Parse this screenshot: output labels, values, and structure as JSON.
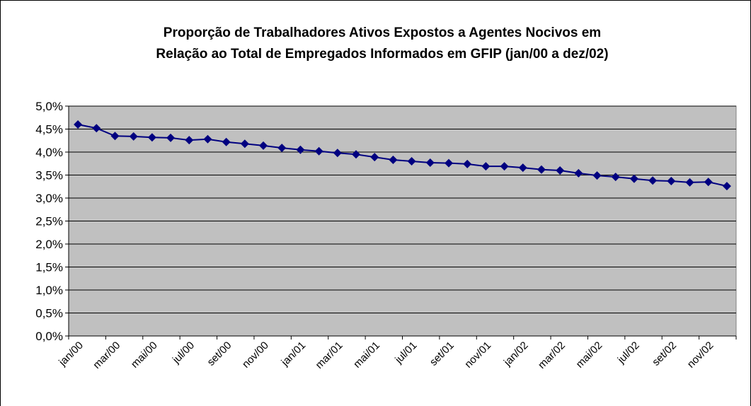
{
  "chart_data": {
    "type": "line",
    "title": [
      "Proporção de Trabalhadores Ativos Expostos a Agentes Nocivos em",
      "Relação ao Total de Empregados Informados em GFIP (jan/00 a dez/02)"
    ],
    "categories": [
      "jan/00",
      null,
      "mar/00",
      null,
      "mai/00",
      null,
      "jul/00",
      null,
      "set/00",
      null,
      "nov/00",
      null,
      "jan/01",
      null,
      "mar/01",
      null,
      "mai/01",
      null,
      "jul/01",
      null,
      "set/01",
      null,
      "nov/01",
      null,
      "jan/02",
      null,
      "mar/02",
      null,
      "mai/02",
      null,
      "jul/02",
      null,
      "set/02",
      null,
      "nov/02",
      null
    ],
    "series": [
      {
        "color": "#000080",
        "values": [
          4.6,
          4.52,
          4.35,
          4.34,
          4.32,
          4.31,
          4.26,
          4.28,
          4.22,
          4.18,
          4.14,
          4.09,
          4.05,
          4.02,
          3.98,
          3.95,
          3.89,
          3.83,
          3.8,
          3.77,
          3.76,
          3.74,
          3.69,
          3.69,
          3.66,
          3.62,
          3.6,
          3.54,
          3.49,
          3.46,
          3.42,
          3.38,
          3.37,
          3.34,
          3.35,
          3.26
        ]
      }
    ],
    "ylim": [
      0,
      5
    ],
    "yticks": [
      {
        "value": 0,
        "label": "0,0%"
      },
      {
        "value": 0.5,
        "label": "0,5%"
      },
      {
        "value": 1,
        "label": "1,0%"
      },
      {
        "value": 1.5,
        "label": "1,5%"
      },
      {
        "value": 2,
        "label": "2,0%"
      },
      {
        "value": 2.5,
        "label": "2,5%"
      },
      {
        "value": 3,
        "label": "3,0%"
      },
      {
        "value": 3.5,
        "label": "3,5%"
      },
      {
        "value": 4,
        "label": "4,0%"
      },
      {
        "value": 4.5,
        "label": "4,5%"
      },
      {
        "value": 5,
        "label": "5,0%"
      }
    ],
    "grid": true
  }
}
